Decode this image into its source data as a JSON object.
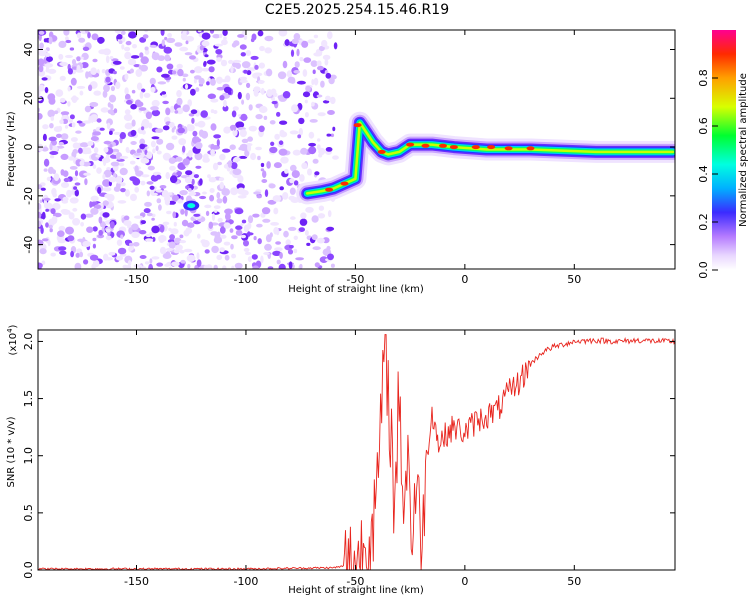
{
  "title": "C2E5.2025.254.15.46.R19",
  "chart_data": [
    {
      "type": "heatmap",
      "xlabel": "Height of straight line (km)",
      "ylabel": "Frequency (Hz)",
      "xlim": [
        -195,
        96
      ],
      "ylim": [
        -50,
        48
      ],
      "xticks": [
        -150,
        -100,
        -50,
        0,
        50
      ],
      "yticks": [
        -40,
        -20,
        0,
        20,
        40
      ],
      "noise_region_x": [
        -195,
        -60
      ],
      "signal_track": [
        {
          "x": -72,
          "y": -19
        },
        {
          "x": -65,
          "y": -18
        },
        {
          "x": -60,
          "y": -17
        },
        {
          "x": -55,
          "y": -15
        },
        {
          "x": -50,
          "y": -13
        },
        {
          "x": -48,
          "y": 10
        },
        {
          "x": -45,
          "y": 6
        },
        {
          "x": -42,
          "y": 2
        },
        {
          "x": -38,
          "y": -2
        },
        {
          "x": -35,
          "y": -3
        },
        {
          "x": -30,
          "y": -2
        },
        {
          "x": -25,
          "y": 1
        },
        {
          "x": -15,
          "y": 1
        },
        {
          "x": -5,
          "y": 0
        },
        {
          "x": 10,
          "y": -1
        },
        {
          "x": 30,
          "y": -1
        },
        {
          "x": 60,
          "y": -2
        },
        {
          "x": 95,
          "y": -2
        }
      ],
      "colorbar": {
        "label": "Normalized spectral amplitude",
        "ticks": [
          "0.0",
          "0.2",
          "0.4",
          "0.6",
          "0.8"
        ],
        "range": [
          0,
          1
        ]
      }
    },
    {
      "type": "line",
      "xlabel": "Height of straight line (km)",
      "ylabel": "SNR (10 * v/v)",
      "multiplier": "(x10",
      "multiplier_exp": "4",
      "multiplier_close": ")",
      "xlim": [
        -195,
        96
      ],
      "ylim": [
        0,
        2.1
      ],
      "xticks": [
        -150,
        -100,
        -50,
        0,
        50
      ],
      "yticks": [
        "0.0",
        "0.5",
        "1.0",
        "1.5",
        "2.0"
      ],
      "series": [
        {
          "name": "SNR",
          "color": "#e8251e",
          "x": [
            -195,
            -100,
            -60,
            -50,
            -45,
            -40,
            -38,
            -36,
            -34,
            -32,
            -30,
            -28,
            -26,
            -24,
            -22,
            -20,
            -18,
            -15,
            -12,
            -10,
            -8,
            -5,
            0,
            5,
            10,
            15,
            20,
            25,
            30,
            35,
            40,
            50,
            60,
            70,
            80,
            90,
            96
          ],
          "y": [
            0.01,
            0.01,
            0.02,
            0.05,
            0.2,
            0.6,
            1.5,
            1.9,
            1.3,
            0.5,
            1.6,
            0.6,
            1.0,
            0.3,
            0.8,
            0.1,
            0.9,
            1.4,
            1.1,
            1.15,
            1.2,
            1.25,
            1.2,
            1.3,
            1.35,
            1.4,
            1.55,
            1.65,
            1.8,
            1.9,
            1.95,
            2.0,
            2.01,
            2.0,
            2.01,
            2.0,
            2.0
          ]
        }
      ]
    }
  ]
}
